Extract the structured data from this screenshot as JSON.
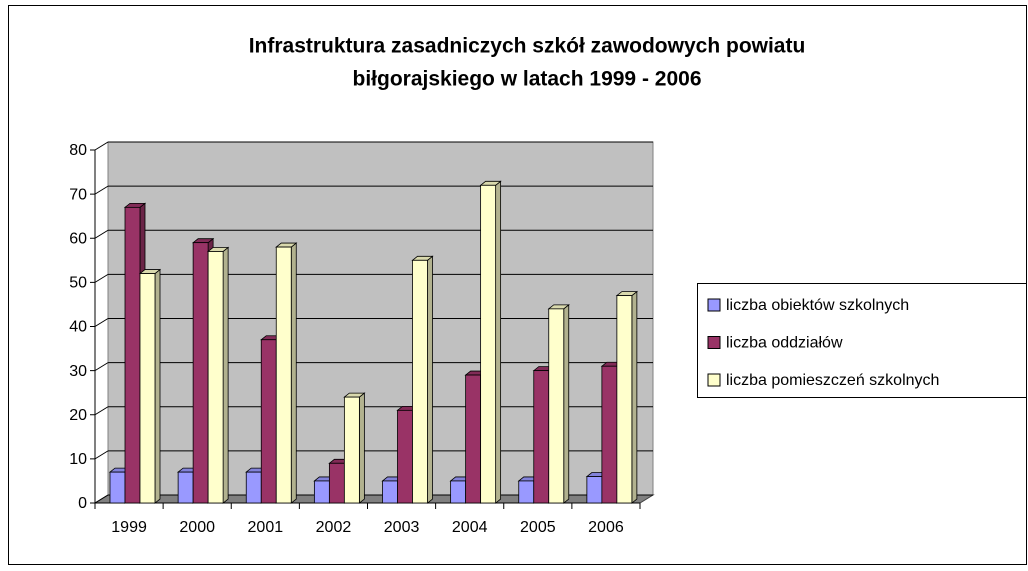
{
  "chart_data": {
    "type": "bar",
    "title": [
      "Infrastruktura zasadniczych szkół zawodowych powiatu",
      "biłgorajskiego w latach 1999 - 2006"
    ],
    "categories": [
      "1999",
      "2000",
      "2001",
      "2002",
      "2003",
      "2004",
      "2005",
      "2006"
    ],
    "series": [
      {
        "name": "liczba obiektów  szkolnych",
        "color": "#9999ff",
        "values": [
          7,
          7,
          7,
          5,
          5,
          5,
          5,
          6
        ]
      },
      {
        "name": "liczba oddziałów",
        "color": "#993366",
        "values": [
          67,
          59,
          37,
          9,
          21,
          29,
          30,
          31
        ]
      },
      {
        "name": "liczba pomieszczeń szkolnych",
        "color": "#ffffcc",
        "values": [
          52,
          57,
          58,
          24,
          55,
          72,
          44,
          47
        ]
      }
    ],
    "ylim": [
      0,
      80
    ],
    "yticks": [
      0,
      10,
      20,
      30,
      40,
      50,
      60,
      70,
      80
    ],
    "grid": true,
    "legend": "right"
  }
}
